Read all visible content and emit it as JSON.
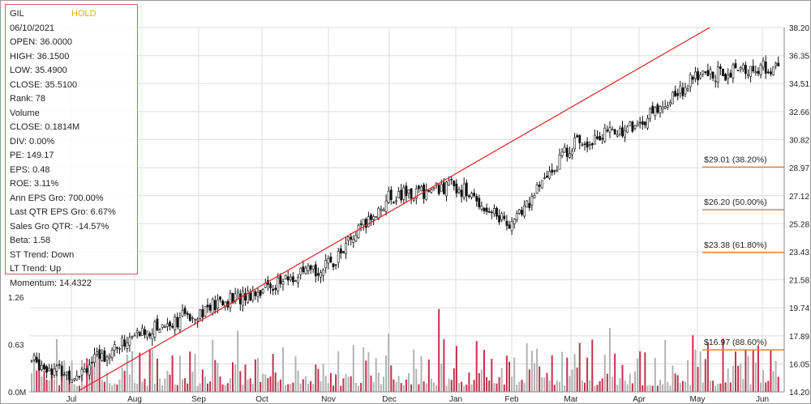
{
  "info": {
    "symbol": "GIL",
    "signal": "HOLD",
    "date": "06/10/2021",
    "rows": [
      "OPEN: 36.0000",
      "HIGH: 36.1500",
      "LOW: 35.4900",
      "CLOSE: 35.5100",
      "Rank: 78",
      "Volume",
      "CLOSE: 0.1814M",
      "DIV: 0.00%",
      "PE: 149.17",
      "EPS: 0.48",
      "ROE: 3.11%",
      "Ann EPS Gro: 700.00%",
      "Last QTR EPS Gro: 6.67%",
      "Sales Gro QTR: -14.57%",
      "Beta: 1.58",
      "ST Trend: Down",
      "LT Trend: Up",
      "Momentum: 14.4322"
    ]
  },
  "chart_data": {
    "type": "candlestick",
    "x_labels": [
      "Jul",
      "Aug",
      "Sep",
      "Oct",
      "Nov",
      "Dec",
      "Jan",
      "Feb",
      "Mar",
      "Apr",
      "May",
      "Jun"
    ],
    "price_ticks": [
      "38.20",
      "36.35",
      "34.51",
      "32.66",
      "30.82",
      "28.97",
      "27.12",
      "25.28",
      "23.43",
      "21.58",
      "19.74",
      "17.89",
      "16.05",
      "14.20"
    ],
    "price_ylim": [
      14.2,
      38.2
    ],
    "volume_ticks": [
      "1.26",
      "0.63",
      "0.0M"
    ],
    "volume_ylim_millions": [
      0,
      1.26
    ],
    "close_path": [
      {
        "month": "Jul",
        "close": 15.3
      },
      {
        "month": "Aug",
        "close": 17.9
      },
      {
        "month": "Sep",
        "close": 19.5
      },
      {
        "month": "Oct",
        "close": 21.0
      },
      {
        "month": "Nov",
        "close": 22.5
      },
      {
        "month": "Dec",
        "close": 27.0
      },
      {
        "month": "Jan",
        "close": 27.8
      },
      {
        "month": "Feb",
        "close": 25.2
      },
      {
        "month": "Mar",
        "close": 30.5
      },
      {
        "month": "Apr",
        "close": 31.8
      },
      {
        "month": "May",
        "close": 35.0
      },
      {
        "month": "Jun",
        "close": 35.5
      }
    ],
    "trendline": {
      "start_price": 14.3,
      "end_price": 38.2
    },
    "fibonacci": [
      {
        "label": "$29.01 (38.20%)",
        "price": 29.01
      },
      {
        "label": "$26.20 (50.00%)",
        "price": 26.2
      },
      {
        "label": "$23.38 (61.80%)",
        "price": 23.38
      },
      {
        "label": "$16.97 (88.60%)",
        "price": 16.97
      }
    ],
    "colors": {
      "trendline": "#e02020",
      "fib": "#e6873a",
      "volume_up": "#b3b3b3",
      "volume_down": "#c2334d",
      "grid": "#dddddd"
    }
  }
}
